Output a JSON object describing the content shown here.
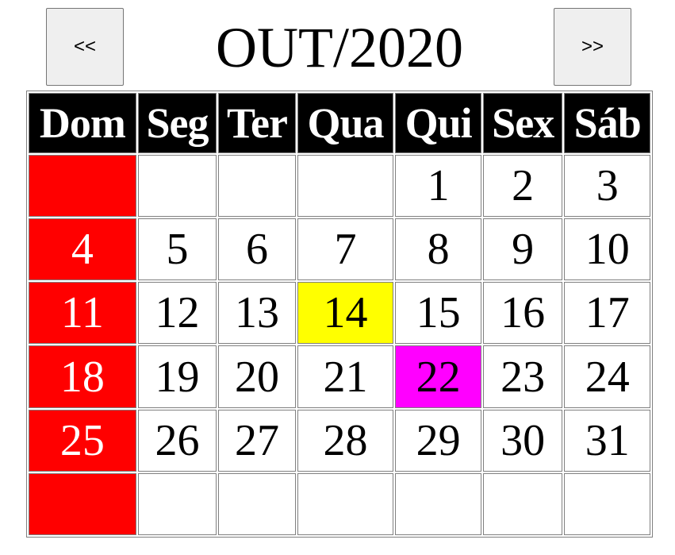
{
  "navigation": {
    "prev_label": "<<",
    "next_label": ">>",
    "title": "OUT/2020"
  },
  "weekdays": [
    "Dom",
    "Seg",
    "Ter",
    "Qua",
    "Qui",
    "Sex",
    "Sáb"
  ],
  "weeks": [
    [
      "",
      "",
      "",
      "",
      "1",
      "2",
      "3"
    ],
    [
      "4",
      "5",
      "6",
      "7",
      "8",
      "9",
      "10"
    ],
    [
      "11",
      "12",
      "13",
      "14",
      "15",
      "16",
      "17"
    ],
    [
      "18",
      "19",
      "20",
      "21",
      "22",
      "23",
      "24"
    ],
    [
      "25",
      "26",
      "27",
      "28",
      "29",
      "30",
      "31"
    ],
    [
      "",
      "",
      "",
      "",
      "",
      "",
      ""
    ]
  ],
  "highlights": [
    {
      "day": "14",
      "color": "#ffff00"
    },
    {
      "day": "22",
      "color": "#ff00ff"
    }
  ],
  "colors": {
    "sunday_background": "#ff0000",
    "sunday_text": "#ffffff",
    "header_background": "#000000",
    "header_text": "#ffffff"
  }
}
